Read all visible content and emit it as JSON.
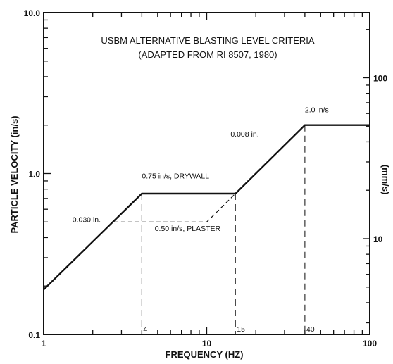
{
  "chart_data": {
    "type": "line",
    "title": "USBM ALTERNATIVE BLASTING LEVEL CRITERIA",
    "subtitle": "(ADAPTED FROM RI 8507, 1980)",
    "xlabel": "FREQUENCY (HZ)",
    "ylabel": "PARTICLE VELOCITY (in/s)",
    "y2label": "(mm/s)",
    "x_scale": "log",
    "y_scale": "log",
    "xlim": [
      1,
      100
    ],
    "ylim": [
      0.1,
      10
    ],
    "x_ticks": [
      "1",
      "10",
      "100"
    ],
    "y_ticks": [
      "0.1",
      "1.0",
      "10.0"
    ],
    "y2_ticks": [
      "10",
      "100"
    ],
    "grid": false,
    "series": [
      {
        "name": "DRYWALL",
        "style": "solid",
        "x": [
          1,
          4,
          15,
          40,
          100
        ],
        "y": [
          0.19,
          0.75,
          0.75,
          2.0,
          2.0
        ]
      },
      {
        "name": "PLASTER",
        "style": "dashed",
        "x": [
          2.7,
          10,
          15
        ],
        "y": [
          0.5,
          0.5,
          0.75
        ]
      }
    ],
    "annotations": [
      {
        "text": "0.030 in.",
        "x": 1.5,
        "y": 0.5
      },
      {
        "text": "0.75 in/s, DRYWALL",
        "x": 4,
        "y": 0.93
      },
      {
        "text": "0.50 in/s, PLASTER",
        "x": 4.8,
        "y": 0.44
      },
      {
        "text": "0.008 in.",
        "x": 14,
        "y": 1.7
      },
      {
        "text": "2.0 in/s",
        "x": 40,
        "y": 2.4
      }
    ],
    "vertical_markers": [
      {
        "label": "4",
        "x": 4
      },
      {
        "label": "15",
        "x": 15
      },
      {
        "label": "40",
        "x": 40
      }
    ]
  }
}
